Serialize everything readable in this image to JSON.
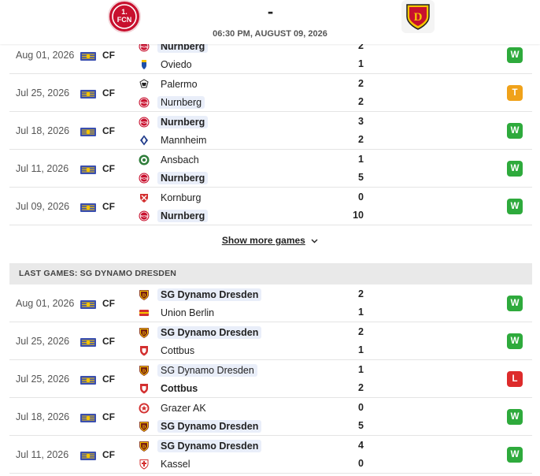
{
  "header": {
    "score_separator": "-",
    "match_datetime": "06:30 PM, AUGUST 09, 2026",
    "home_logo_icon": "nurnberg-crest-icon",
    "away_logo_icon": "dynamo-dresden-crest-icon"
  },
  "home_games": [
    {
      "date": "Aug 01, 2026",
      "comp": "CF",
      "t1": "Nurnberg",
      "t1_icon": "nurnberg-icon",
      "t1_bold": true,
      "t1_hl": true,
      "t2": "Oviedo",
      "t2_icon": "oviedo-icon",
      "t2_bold": false,
      "t2_hl": false,
      "s1": "2",
      "s2": "1",
      "result": "W"
    },
    {
      "date": "Jul 25, 2026",
      "comp": "CF",
      "t1": "Palermo",
      "t1_icon": "palermo-icon",
      "t1_bold": false,
      "t1_hl": false,
      "t2": "Nurnberg",
      "t2_icon": "nurnberg-icon",
      "t2_bold": false,
      "t2_hl": true,
      "s1": "2",
      "s2": "2",
      "result": "T"
    },
    {
      "date": "Jul 18, 2026",
      "comp": "CF",
      "t1": "Nurnberg",
      "t1_icon": "nurnberg-icon",
      "t1_bold": true,
      "t1_hl": true,
      "t2": "Mannheim",
      "t2_icon": "mannheim-icon",
      "t2_bold": false,
      "t2_hl": false,
      "s1": "3",
      "s2": "2",
      "result": "W"
    },
    {
      "date": "Jul 11, 2026",
      "comp": "CF",
      "t1": "Ansbach",
      "t1_icon": "ansbach-icon",
      "t1_bold": false,
      "t1_hl": false,
      "t2": "Nurnberg",
      "t2_icon": "nurnberg-icon",
      "t2_bold": true,
      "t2_hl": true,
      "s1": "1",
      "s2": "5",
      "result": "W"
    },
    {
      "date": "Jul 09, 2026",
      "comp": "CF",
      "t1": "Kornburg",
      "t1_icon": "kornburg-icon",
      "t1_bold": false,
      "t1_hl": false,
      "t2": "Nurnberg",
      "t2_icon": "nurnberg-icon",
      "t2_bold": true,
      "t2_hl": true,
      "s1": "0",
      "s2": "10",
      "result": "W"
    }
  ],
  "show_more": "Show more games",
  "away_section_title": "LAST GAMES: SG DYNAMO DRESDEN",
  "away_games": [
    {
      "date": "Aug 01, 2026",
      "comp": "CF",
      "t1": "SG Dynamo Dresden",
      "t1_icon": "dynamo-dresden-icon",
      "t1_bold": true,
      "t1_hl": true,
      "t2": "Union Berlin",
      "t2_icon": "union-berlin-icon",
      "t2_bold": false,
      "t2_hl": false,
      "s1": "2",
      "s2": "1",
      "result": "W"
    },
    {
      "date": "Jul 25, 2026",
      "comp": "CF",
      "t1": "SG Dynamo Dresden",
      "t1_icon": "dynamo-dresden-icon",
      "t1_bold": true,
      "t1_hl": true,
      "t2": "Cottbus",
      "t2_icon": "cottbus-icon",
      "t2_bold": false,
      "t2_hl": false,
      "s1": "2",
      "s2": "1",
      "result": "W"
    },
    {
      "date": "Jul 25, 2026",
      "comp": "CF",
      "t1": "SG Dynamo Dresden",
      "t1_icon": "dynamo-dresden-icon",
      "t1_bold": false,
      "t1_hl": true,
      "t2": "Cottbus",
      "t2_icon": "cottbus-icon",
      "t2_bold": true,
      "t2_hl": false,
      "s1": "1",
      "s2": "2",
      "result": "L"
    },
    {
      "date": "Jul 18, 2026",
      "comp": "CF",
      "t1": "Grazer AK",
      "t1_icon": "grazer-ak-icon",
      "t1_bold": false,
      "t1_hl": false,
      "t2": "SG Dynamo Dresden",
      "t2_icon": "dynamo-dresden-icon",
      "t2_bold": true,
      "t2_hl": true,
      "s1": "0",
      "s2": "5",
      "result": "W"
    },
    {
      "date": "Jul 11, 2026",
      "comp": "CF",
      "t1": "SG Dynamo Dresden",
      "t1_icon": "dynamo-dresden-icon",
      "t1_bold": true,
      "t1_hl": true,
      "t2": "Kassel",
      "t2_icon": "kassel-icon",
      "t2_bold": false,
      "t2_hl": false,
      "s1": "4",
      "s2": "0",
      "result": "W"
    }
  ],
  "colors": {
    "win": "#2eaa3c",
    "tie": "#f0a21a",
    "loss": "#dd2b2b",
    "highlight": "#e9eef9",
    "nurnberg_red": "#c8102e",
    "dynamo_yellow": "#f5c400"
  }
}
